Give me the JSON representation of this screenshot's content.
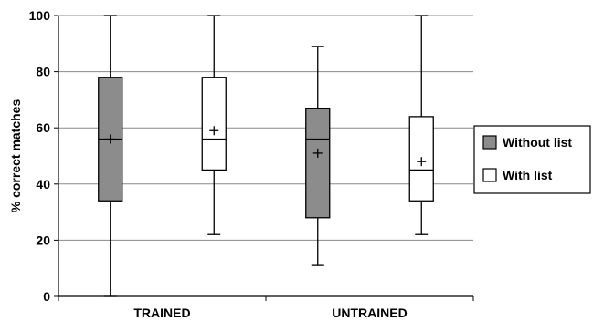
{
  "chart_data": {
    "type": "boxplot",
    "ylabel": "% correct matches",
    "xlabel": "",
    "ylim": [
      0,
      100
    ],
    "yticks": [
      0,
      20,
      40,
      60,
      80,
      100
    ],
    "grid": true,
    "legend_position": "right",
    "categories": [
      "TRAINED",
      "UNTRAINED"
    ],
    "series": [
      {
        "name": "Without list",
        "fill": "#8c8c8c",
        "boxes": [
          {
            "category": "TRAINED",
            "min": 0,
            "q1": 34,
            "median": 56,
            "q3": 78,
            "max": 100,
            "mean": 56
          },
          {
            "category": "UNTRAINED",
            "min": 11,
            "q1": 28,
            "median": 56,
            "q3": 67,
            "max": 89,
            "mean": 51
          }
        ]
      },
      {
        "name": "With list",
        "fill": "#ffffff",
        "boxes": [
          {
            "category": "TRAINED",
            "min": 22,
            "q1": 45,
            "median": 56,
            "q3": 78,
            "max": 100,
            "mean": 59
          },
          {
            "category": "UNTRAINED",
            "min": 22,
            "q1": 34,
            "median": 45,
            "q3": 64,
            "max": 100,
            "mean": 48
          }
        ]
      }
    ]
  }
}
